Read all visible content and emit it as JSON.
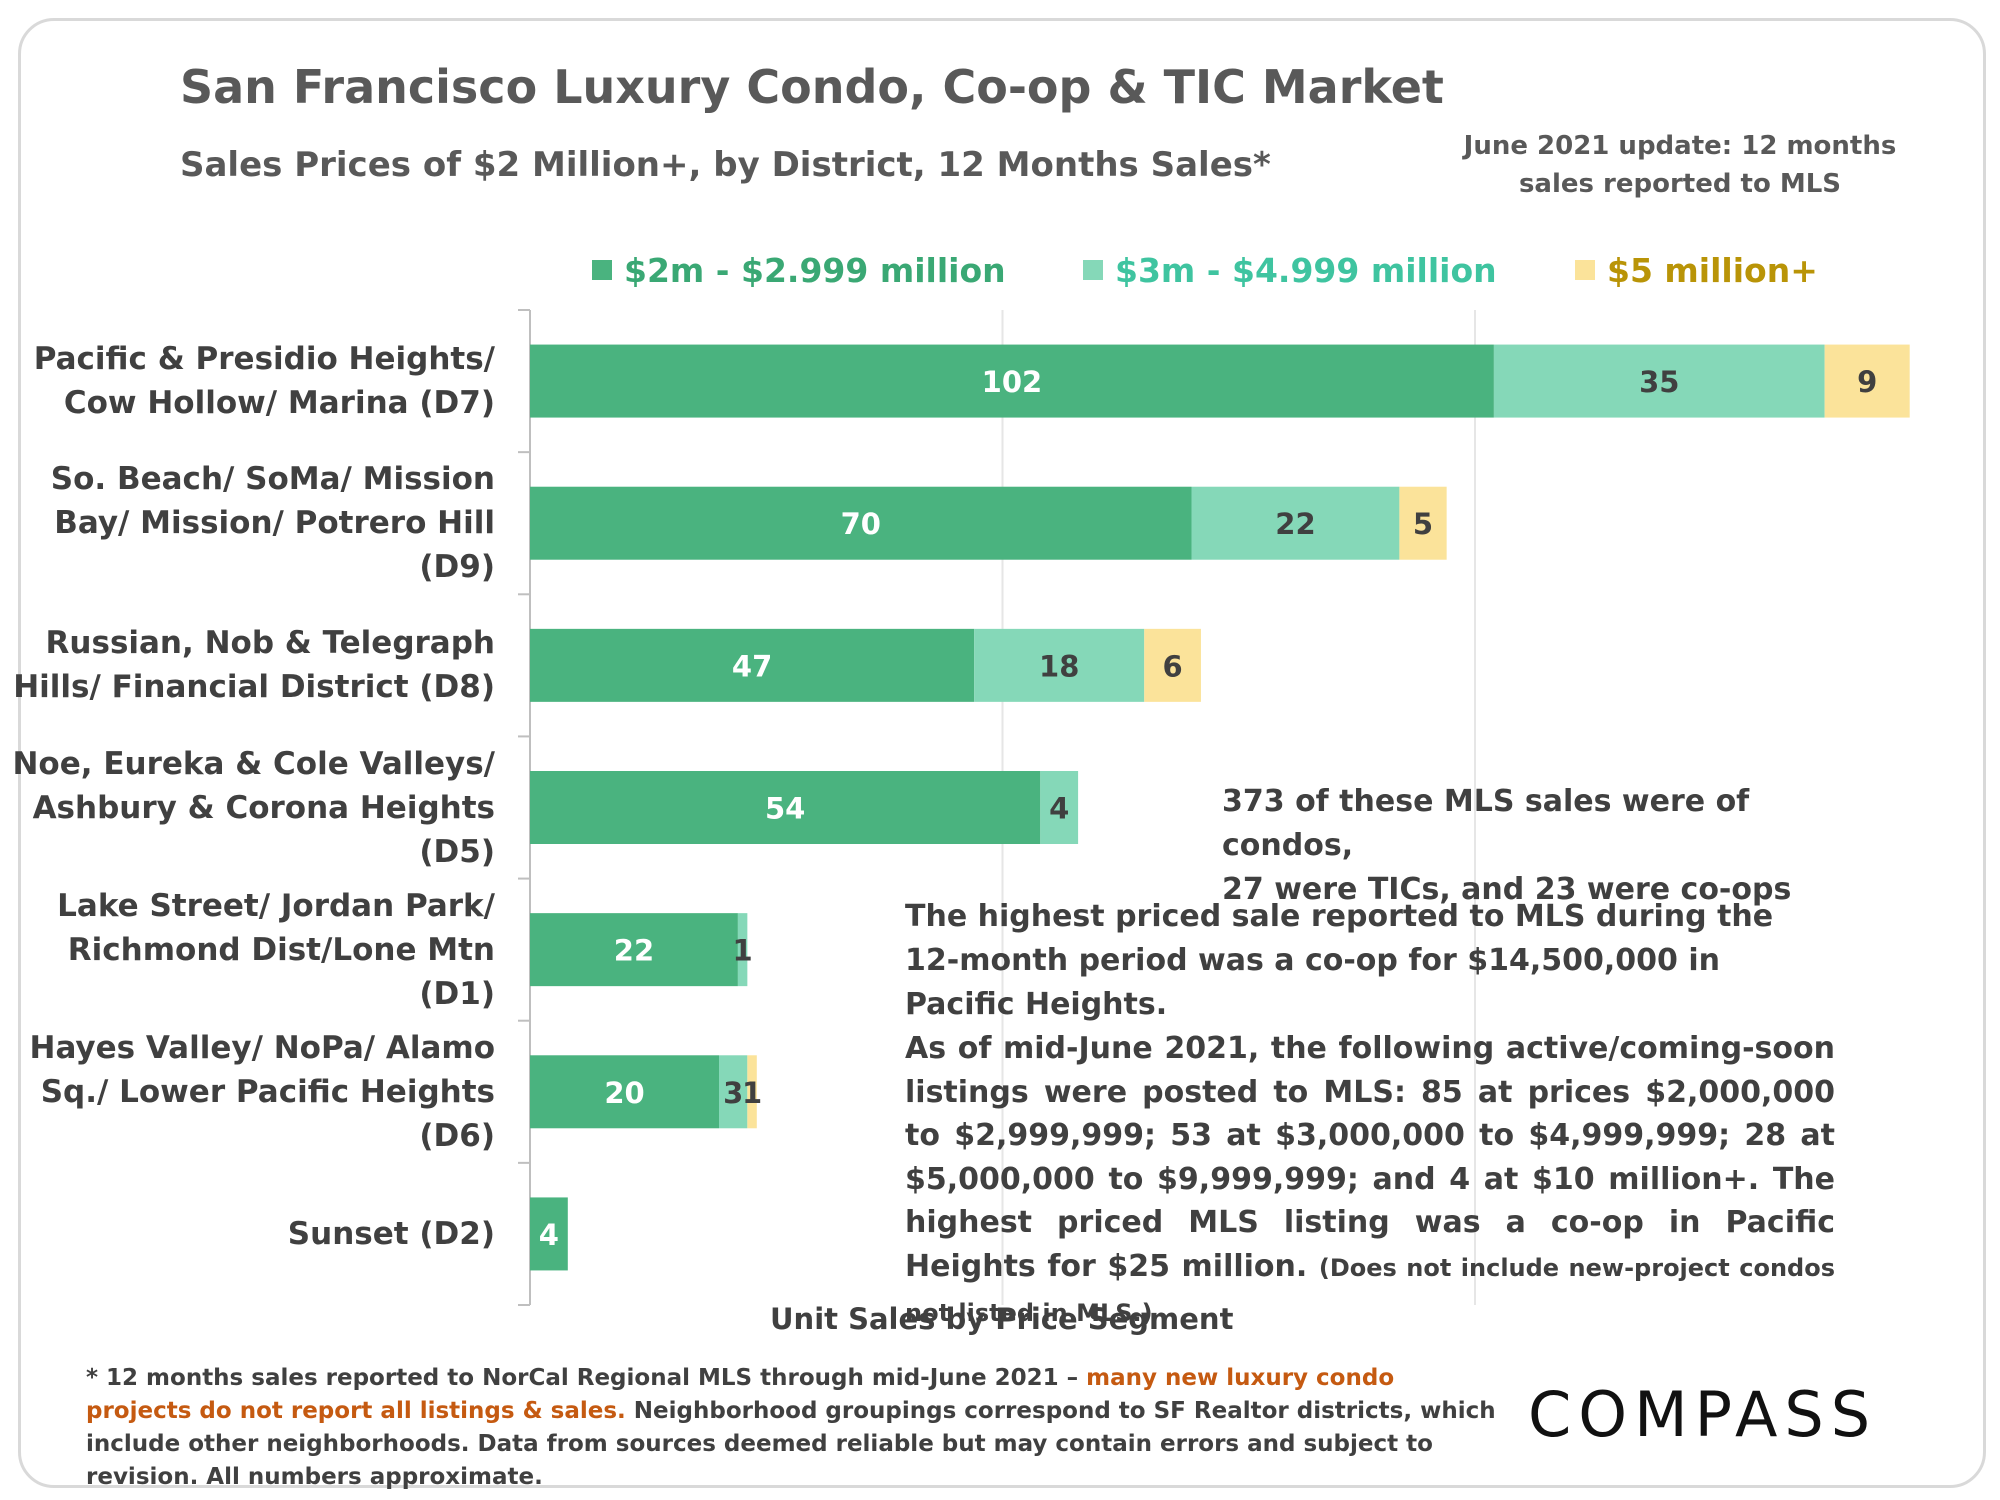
{
  "header": {
    "title": "San Francisco Luxury Condo, Co-op & TIC Market",
    "subtitle": "Sales Prices of $2 Million+, by District, 12 Months Sales*",
    "update_line1": "June 2021 update: 12 months",
    "update_line2": "sales reported to MLS"
  },
  "colors": {
    "seg1": "#4ab37f",
    "seg2": "#85d8b8",
    "seg3": "#fbe39a",
    "legend1_text": "#3aa874",
    "legend2_text": "#3fc4a0",
    "legend3_text": "#b99407",
    "footnote_highlight": "#c55a11"
  },
  "chart_data": {
    "type": "bar",
    "orientation": "horizontal",
    "stacked": true,
    "xlabel": "Unit Sales by Price Segment",
    "categories": [
      [
        "Pacific & Presidio Heights/",
        "Cow Hollow/ Marina (D7)"
      ],
      [
        "So. Beach/ SoMa/ Mission",
        "Bay/ Mission/ Potrero Hill",
        "(D9)"
      ],
      [
        "Russian, Nob & Telegraph",
        "Hills/ Financial District (D8)"
      ],
      [
        "Noe, Eureka & Cole Valleys/",
        "Ashbury & Corona Heights",
        "(D5)"
      ],
      [
        "Lake Street/ Jordan Park/",
        "Richmond Dist/Lone Mtn",
        "(D1)"
      ],
      [
        "Hayes Valley/ NoPa/ Alamo",
        "Sq./ Lower Pacific Heights",
        "(D6)"
      ],
      [
        "Sunset (D2)"
      ]
    ],
    "series": [
      {
        "name": "$2m - $2.999 million",
        "values": [
          102,
          70,
          47,
          54,
          22,
          20,
          4
        ]
      },
      {
        "name": "$3m - $4.999 million",
        "values": [
          35,
          22,
          18,
          4,
          1,
          3,
          0
        ]
      },
      {
        "name": "$5 million+",
        "values": [
          9,
          5,
          6,
          0,
          0,
          1,
          0
        ]
      }
    ],
    "xlim": [
      0,
      150
    ],
    "gridlines": [
      50,
      100
    ],
    "grid": true,
    "legend": "top"
  },
  "notes": {
    "composition_line1": "373 of these MLS sales were of condos,",
    "composition_line2": "27 were TICs, and 23 were co-ops",
    "highest_sale": "The highest priced sale reported to MLS during the 12-month period was a co-op for $14,500,000 in Pacific Heights.",
    "listings": "As of mid-June 2021, the following active/coming-soon listings were posted to MLS:  85 at prices $2,000,000 to $2,999,999; 53 at $3,000,000 to $4,999,999;  28 at $5,000,000 to $9,999,999; and 4 at $10 million+. The highest priced MLS listing was a co-op in Pacific Heights for $25 million.",
    "listings_small": "(Does not include new-project condos not listed in MLS.)"
  },
  "footnote": {
    "part1": "* 12 months sales reported to NorCal Regional MLS through mid-June 2021 – ",
    "highlight": "many new luxury condo projects do not report all listings & sales.",
    "part2": " Neighborhood groupings correspond to SF Realtor districts, which include other neighborhoods. Data from sources deemed reliable but may contain errors and subject to revision. All numbers approximate."
  },
  "brand": {
    "logo": "COMPASS"
  }
}
